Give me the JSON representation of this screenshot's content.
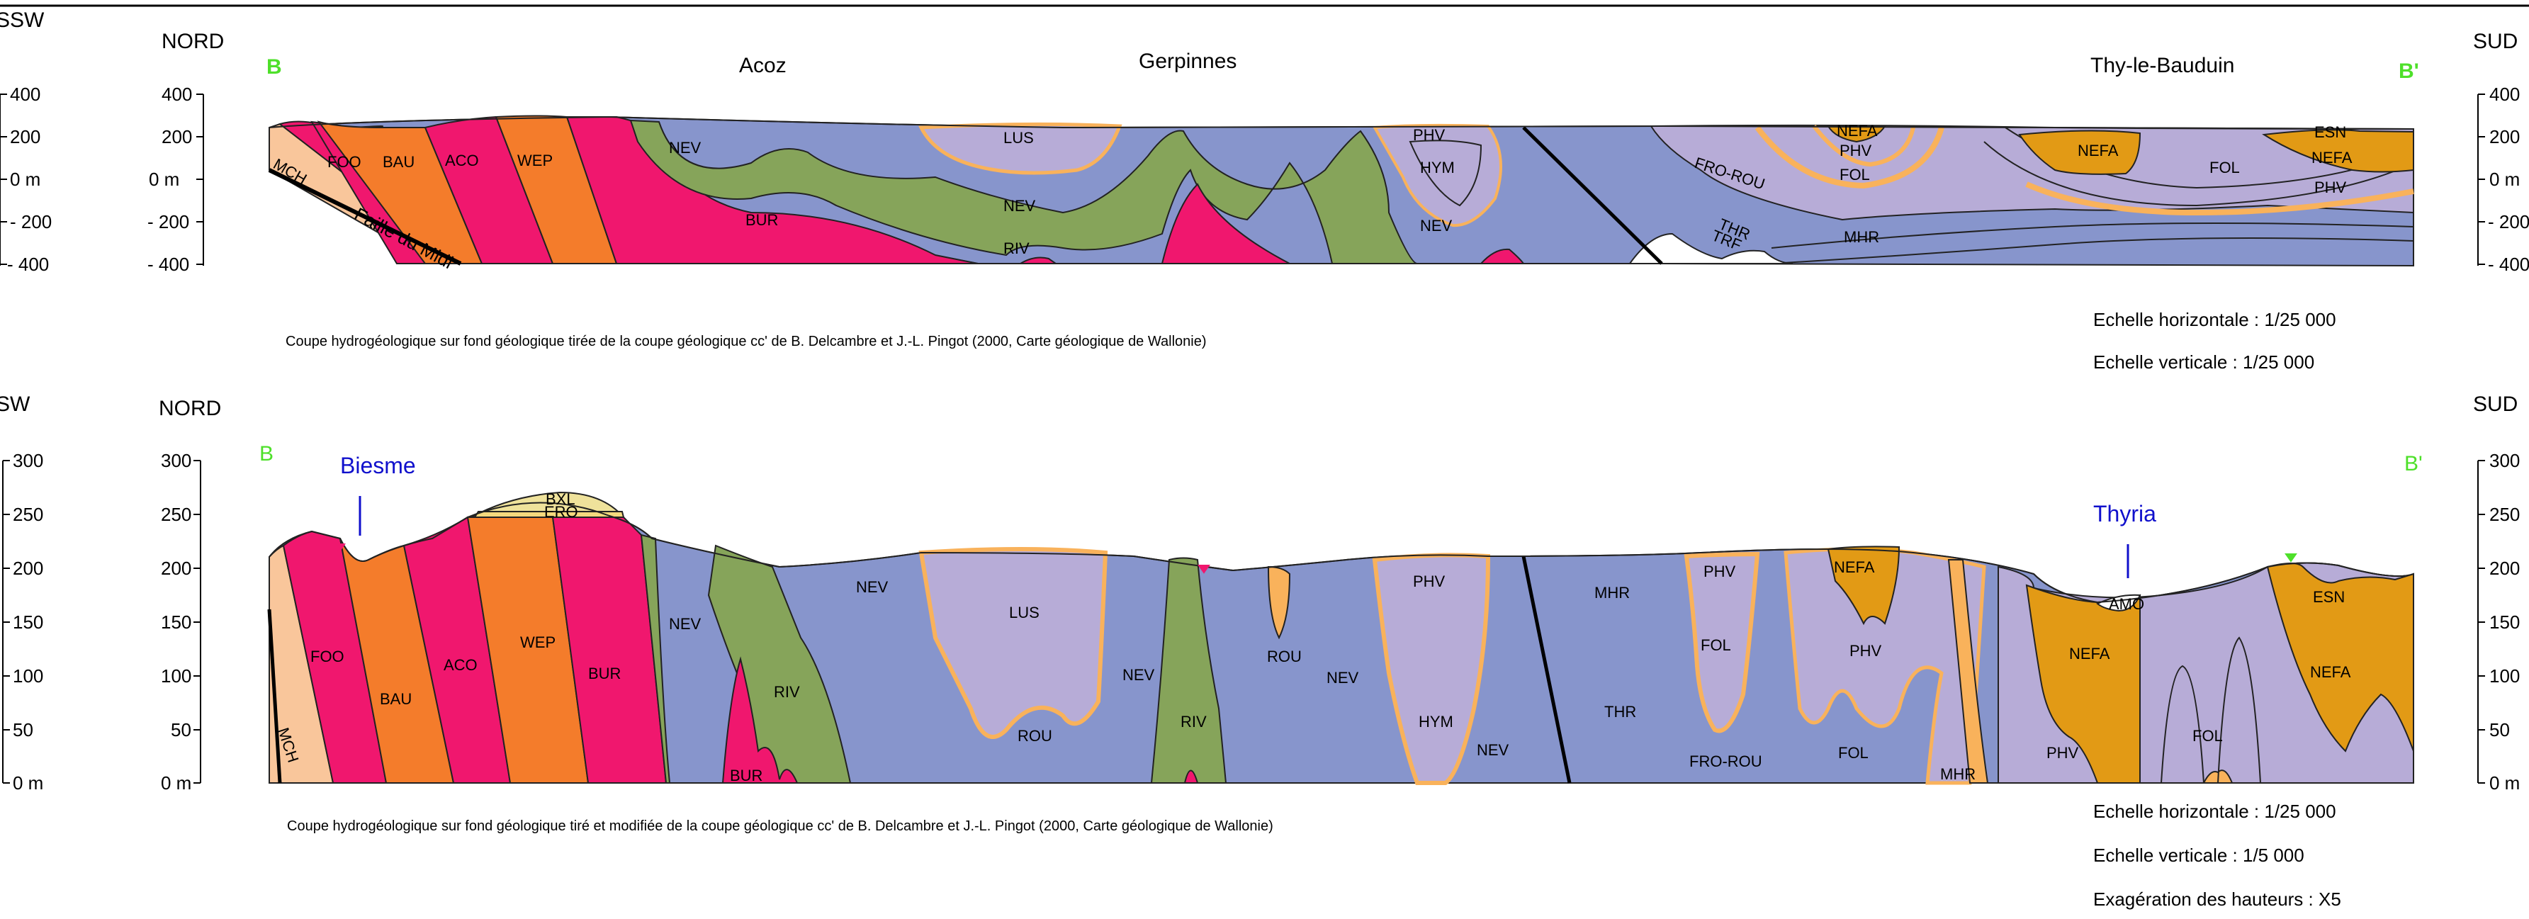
{
  "colors": {
    "NEV": "#8795cc",
    "BUR": "#f0176e",
    "RIV": "#86a45a",
    "LUS": "#b7acd7",
    "PHV": "#b7acd7",
    "NEFA": "#e29a15",
    "FOO": "#f0176e",
    "BAU": "#f47c2b",
    "ACO": "#f0176e",
    "WEP": "#f47c2b",
    "MCH": "#f9c69b",
    "ROU": "#f9b25b",
    "BXL": "#efe29b",
    "ERO": "#f4d97e",
    "accent_green": "#4ee02a",
    "river_blue": "#1010cc",
    "line": "#000000"
  },
  "top": {
    "direction_left_outer": "SSW",
    "direction_left": "NORD",
    "direction_right": "SUD",
    "point_start": "B",
    "point_end": "B'",
    "places": [
      "Acoz",
      "Gerpinnes",
      "Thy-le-Bauduin"
    ],
    "left_ticks": [
      "400",
      "200",
      "0 m",
      "- 200",
      "- 400"
    ],
    "right_ticks": [
      "400",
      "200",
      "0 m",
      "- 200",
      "- 400"
    ],
    "fault_label": "Faille du Midi",
    "caption": "Coupe hydrogéologique  sur fond géologique tirée de la coupe géologique cc' de B. Delcambre et J.-L. Pingot (2000, Carte géologique de Wallonie)",
    "scale_h": "Echelle horizontale : 1/25 000",
    "scale_v": "Echelle verticale : 1/25 000",
    "units": {
      "MCH": "MCH",
      "FOO": "FOO",
      "BAU": "BAU",
      "ACO": "ACO",
      "WEP": "WEP",
      "NEV1": "NEV",
      "BUR": "BUR",
      "LUS": "LUS",
      "NEV2": "NEV",
      "RIV": "RIV",
      "PHV1": "PHV",
      "HYM": "HYM",
      "NEV3": "NEV",
      "FROROU": "FRO-ROU",
      "THR": "THR",
      "TRF": "TRF",
      "NEFA1": "NEFA",
      "PHV2": "PHV",
      "FOL1": "FOL",
      "MHR": "MHR",
      "NEFA2": "NEFA",
      "FOL2": "FOL",
      "ESN": "ESN",
      "NEFA3": "NEFA",
      "PHV3": "PHV"
    }
  },
  "bottom": {
    "direction_left_outer": "SW",
    "direction_left": "NORD",
    "direction_right": "SUD",
    "point_start": "B",
    "point_end": "B'",
    "river_left": "Biesme",
    "river_right": "Thyria",
    "left_ticks": [
      "300",
      "250",
      "200",
      "150",
      "100",
      "50",
      "0 m"
    ],
    "right_ticks": [
      "300",
      "250",
      "200",
      "150",
      "100",
      "50",
      "0 m"
    ],
    "caption": "Coupe hydrogéologique sur fond géologique tiré et modifiée de la coupe géologique cc' de B. Delcambre et J.-L. Pingot (2000, Carte géologique de Wallonie)",
    "scale_h": "Echelle horizontale : 1/25 000",
    "scale_v": "Echelle verticale : 1/5 000",
    "exaggeration": "Exagération des hauteurs : X5",
    "units": {
      "MCH": "MCH",
      "FOO": "FOO",
      "BAU": "BAU",
      "ACO": "ACO",
      "WEP": "WEP",
      "BUR1": "BUR",
      "BXL": "BXL",
      "ERO": "ERO",
      "NEV1": "NEV",
      "RIV1": "RIV",
      "BUR2": "BUR",
      "NEV2": "NEV",
      "LUS": "LUS",
      "ROU1": "ROU",
      "NEV3": "NEV",
      "RIV2": "RIV",
      "ROU2": "ROU",
      "NEV4": "NEV",
      "PHV1": "PHV",
      "HYM": "HYM",
      "NEV5": "NEV",
      "MHR1": "MHR",
      "THR": "THR",
      "PHV2": "PHV",
      "FOL1": "FOL",
      "FROROU": "FRO-ROU",
      "NEFA1": "NEFA",
      "PHV3": "PHV",
      "FOL2": "FOL",
      "MHR2": "MHR",
      "AMO": "AMO",
      "NEFA2": "NEFA",
      "PHV4": "PHV",
      "FOL3": "FOL",
      "ESN": "ESN",
      "NEFA3": "NEFA"
    }
  }
}
